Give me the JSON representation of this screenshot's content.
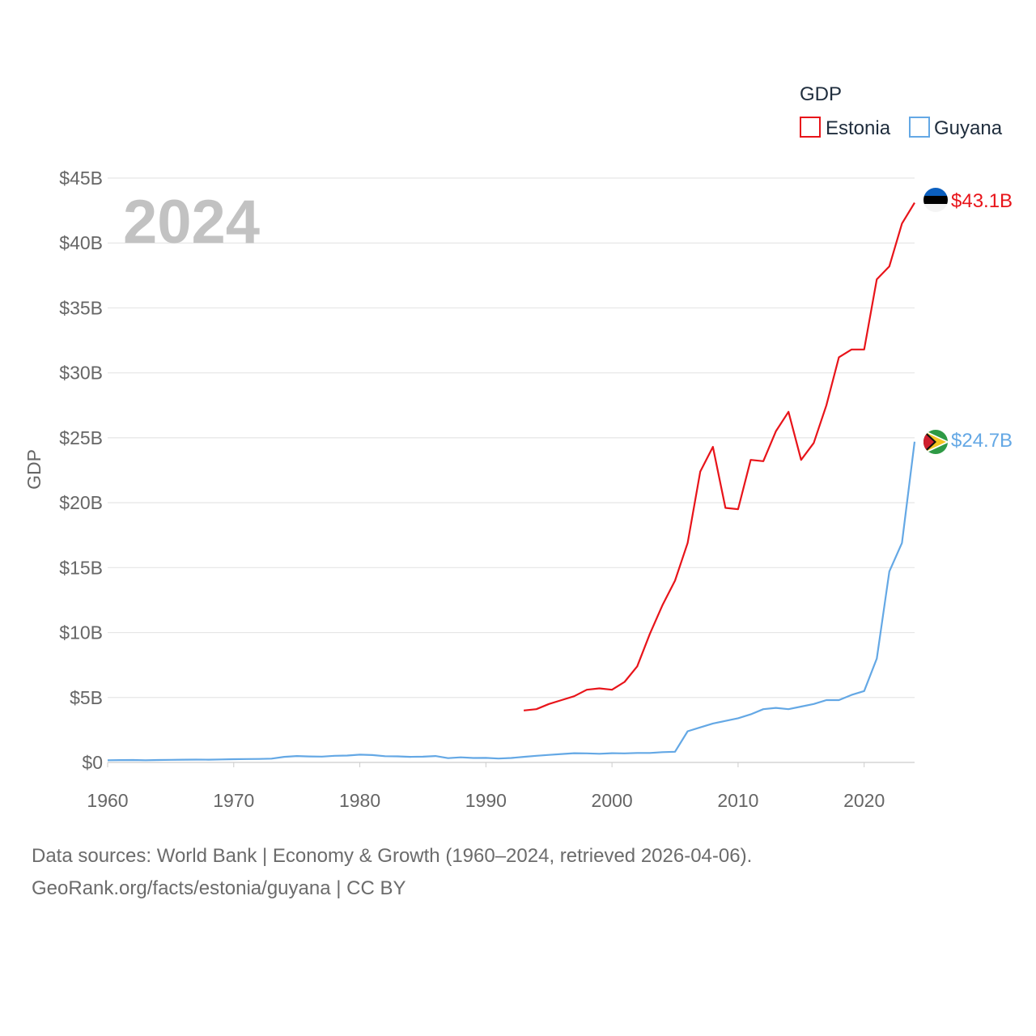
{
  "chart_data": {
    "type": "line",
    "title": "GDP",
    "ylabel": "GDP",
    "xlabel": "",
    "year_label": "2024",
    "xlim": [
      1960,
      2024
    ],
    "ylim": [
      0,
      45
    ],
    "x_ticks": [
      1960,
      1970,
      1980,
      1990,
      2000,
      2010,
      2020
    ],
    "x_tick_labels": [
      "1960",
      "1970",
      "1980",
      "1990",
      "2000",
      "2010",
      "2020"
    ],
    "y_ticks": [
      0,
      5,
      10,
      15,
      20,
      25,
      30,
      35,
      40,
      45
    ],
    "y_tick_labels": [
      "$0",
      "$5B",
      "$10B",
      "$15B",
      "$20B",
      "$25B",
      "$30B",
      "$35B",
      "$40B",
      "$45B"
    ],
    "legend_position": "top-right",
    "series": [
      {
        "name": "Estonia",
        "color": "#e8141a",
        "end_label": "$43.1B",
        "flag": "estonia-flag",
        "x": [
          1993,
          1994,
          1995,
          1996,
          1997,
          1998,
          1999,
          2000,
          2001,
          2002,
          2003,
          2004,
          2005,
          2006,
          2007,
          2008,
          2009,
          2010,
          2011,
          2012,
          2013,
          2014,
          2015,
          2016,
          2017,
          2018,
          2019,
          2020,
          2021,
          2022,
          2023,
          2024
        ],
        "values": [
          4.0,
          4.1,
          4.5,
          4.8,
          5.1,
          5.6,
          5.7,
          5.6,
          6.2,
          7.4,
          9.9,
          12.1,
          14.0,
          16.9,
          22.4,
          24.3,
          19.6,
          19.5,
          23.3,
          23.2,
          25.5,
          27.0,
          23.3,
          24.6,
          27.5,
          31.2,
          31.8,
          31.8,
          37.2,
          38.2,
          41.5,
          43.1
        ]
      },
      {
        "name": "Guyana",
        "color": "#64a8e5",
        "end_label": "$24.7B",
        "flag": "guyana-flag",
        "x": [
          1960,
          1961,
          1962,
          1963,
          1964,
          1965,
          1966,
          1967,
          1968,
          1969,
          1970,
          1971,
          1972,
          1973,
          1974,
          1975,
          1976,
          1977,
          1978,
          1979,
          1980,
          1981,
          1982,
          1983,
          1984,
          1985,
          1986,
          1987,
          1988,
          1989,
          1990,
          1991,
          1992,
          1993,
          1994,
          1995,
          1996,
          1997,
          1998,
          1999,
          2000,
          2001,
          2002,
          2003,
          2004,
          2005,
          2006,
          2007,
          2008,
          2009,
          2010,
          2011,
          2012,
          2013,
          2014,
          2015,
          2016,
          2017,
          2018,
          2019,
          2020,
          2021,
          2022,
          2023,
          2024
        ],
        "values": [
          0.17,
          0.18,
          0.19,
          0.17,
          0.19,
          0.2,
          0.21,
          0.22,
          0.21,
          0.23,
          0.25,
          0.26,
          0.27,
          0.29,
          0.43,
          0.49,
          0.46,
          0.45,
          0.51,
          0.53,
          0.6,
          0.57,
          0.48,
          0.47,
          0.43,
          0.44,
          0.49,
          0.33,
          0.39,
          0.34,
          0.35,
          0.3,
          0.34,
          0.43,
          0.51,
          0.58,
          0.65,
          0.71,
          0.7,
          0.67,
          0.71,
          0.7,
          0.73,
          0.73,
          0.79,
          0.82,
          2.4,
          2.7,
          3.0,
          3.2,
          3.4,
          3.7,
          4.1,
          4.2,
          4.1,
          4.3,
          4.5,
          4.8,
          4.8,
          5.2,
          5.5,
          8.0,
          14.7,
          16.9,
          24.7
        ]
      }
    ]
  },
  "footer": {
    "line1": "Data sources: World Bank | Economy & Growth (1960–2024, retrieved 2026-04-06).",
    "line2": "GeoRank.org/facts/estonia/guyana | CC BY"
  }
}
